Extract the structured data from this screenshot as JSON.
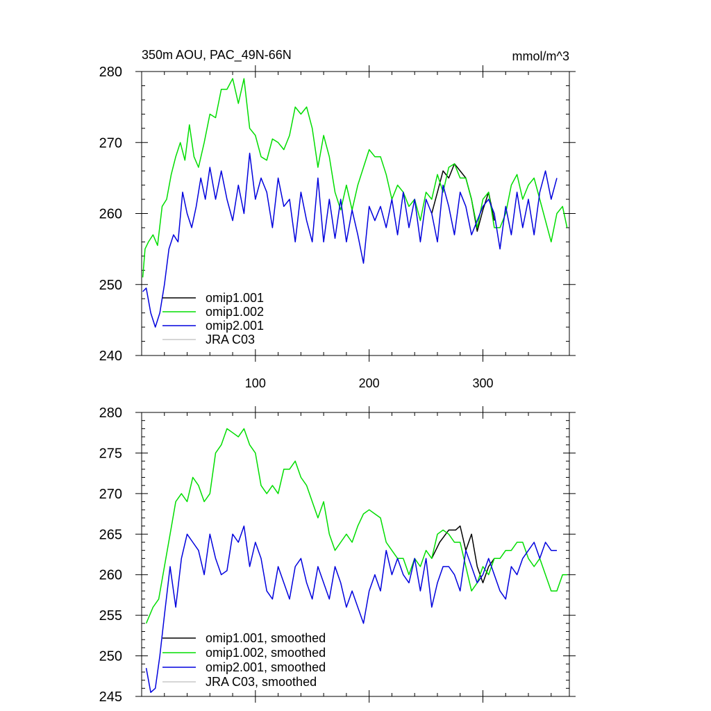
{
  "chart_data": [
    {
      "type": "line",
      "title": "350m AOU, PAC_49N-66N",
      "units_label": "mmol/m^3",
      "xlim": [
        0,
        376
      ],
      "ylim": [
        240,
        280
      ],
      "x_ticks": [
        100,
        200,
        300
      ],
      "y_ticks": [
        240,
        250,
        260,
        270,
        280
      ],
      "legend_placement": "lower-left",
      "legend": [
        "omip1.001",
        "omip1.002",
        "omip2.001",
        "JRA C03"
      ],
      "series": [
        {
          "name": "omip1.001",
          "color": "#000000",
          "x": [
            255,
            260,
            265,
            270,
            275,
            280,
            285,
            290,
            295,
            300,
            305,
            310
          ],
          "y": [
            260,
            263,
            266,
            265,
            267,
            266,
            265,
            262,
            257.5,
            260.5,
            263,
            259
          ]
        },
        {
          "name": "omip1.002",
          "color": "#00dd00",
          "x": [
            1,
            3,
            6,
            10,
            14,
            18,
            22,
            26,
            30,
            34,
            38,
            42,
            46,
            50,
            55,
            60,
            65,
            70,
            75,
            80,
            85,
            90,
            95,
            100,
            105,
            110,
            115,
            120,
            125,
            130,
            135,
            140,
            145,
            150,
            155,
            160,
            165,
            170,
            175,
            180,
            185,
            190,
            195,
            200,
            205,
            210,
            215,
            220,
            225,
            230,
            235,
            240,
            245,
            250,
            255,
            260,
            265,
            270,
            275,
            280,
            285,
            290,
            295,
            300,
            305,
            310,
            315,
            320,
            325,
            330,
            335,
            340,
            345,
            350,
            355,
            360,
            365,
            370,
            374
          ],
          "y": [
            251,
            255,
            256,
            257,
            255.5,
            261,
            262,
            265.5,
            268,
            270,
            267.5,
            272.5,
            268,
            266.5,
            270,
            274,
            273.5,
            277.5,
            277.5,
            279,
            275.5,
            279,
            272,
            271,
            268,
            267.5,
            270.5,
            270,
            269,
            271,
            275,
            274,
            275,
            272,
            266.5,
            271,
            268,
            263,
            260.5,
            264,
            260.5,
            264,
            266.5,
            269,
            268,
            268,
            265.5,
            262,
            264,
            263,
            261,
            262,
            259,
            263,
            262,
            265.5,
            263,
            266.5,
            267,
            265,
            265,
            262,
            258,
            262,
            263,
            258,
            258,
            260,
            264,
            265.5,
            262,
            264,
            265,
            262,
            259,
            256,
            260,
            261,
            258
          ]
        },
        {
          "name": "omip2.001",
          "color": "#0000dd",
          "x": [
            1,
            4,
            8,
            12,
            16,
            20,
            24,
            28,
            32,
            36,
            40,
            44,
            48,
            52,
            56,
            60,
            65,
            70,
            75,
            80,
            85,
            90,
            95,
            100,
            105,
            110,
            115,
            120,
            125,
            130,
            135,
            140,
            145,
            150,
            155,
            160,
            165,
            170,
            175,
            180,
            185,
            190,
            195,
            200,
            205,
            210,
            215,
            220,
            225,
            230,
            235,
            240,
            245,
            250,
            255,
            260,
            265,
            270,
            275,
            280,
            285,
            290,
            295,
            300,
            305,
            310,
            315,
            320,
            325,
            330,
            335,
            340,
            345,
            350,
            355,
            360,
            365
          ],
          "y": [
            249,
            249.5,
            246,
            244,
            246,
            250,
            255,
            257,
            256,
            263,
            260,
            258,
            261,
            265,
            262,
            266.5,
            262,
            266,
            262,
            259,
            264,
            260,
            268.5,
            262,
            265,
            263,
            258,
            265,
            261,
            262,
            256,
            263,
            259,
            256,
            265,
            256,
            262,
            256.5,
            262,
            256,
            260.5,
            257,
            253,
            261,
            259,
            261,
            258,
            262,
            257,
            263,
            258,
            262,
            256,
            262,
            260,
            256,
            264,
            261,
            257,
            263,
            261,
            257,
            259,
            261,
            262,
            260,
            255,
            261,
            257,
            263,
            258,
            262,
            257,
            263,
            266,
            262,
            265
          ]
        },
        {
          "name": "JRA C03",
          "color": "#c8c8c8",
          "x": [],
          "y": []
        }
      ]
    },
    {
      "type": "line",
      "title": "",
      "xlim": [
        0,
        376
      ],
      "ylim": [
        245,
        280
      ],
      "x_ticks": [
        100,
        200,
        300
      ],
      "y_ticks": [
        245,
        250,
        255,
        260,
        265,
        270,
        275,
        280
      ],
      "legend_placement": "lower-left",
      "legend": [
        "omip1.001, smoothed",
        "omip1.002, smoothed",
        "omip2.001, smoothed",
        "JRA C03, smoothed"
      ],
      "series": [
        {
          "name": "omip1.001, smoothed",
          "color": "#000000",
          "x": [
            255,
            262,
            270,
            276,
            280,
            285,
            290,
            295,
            300,
            305,
            310
          ],
          "y": [
            262,
            264,
            265.5,
            265.5,
            266,
            263,
            265,
            261,
            259,
            261,
            262
          ]
        },
        {
          "name": "omip1.002, smoothed",
          "color": "#00dd00",
          "x": [
            4,
            10,
            15,
            20,
            25,
            30,
            35,
            40,
            45,
            50,
            55,
            60,
            65,
            70,
            75,
            80,
            85,
            90,
            95,
            100,
            105,
            110,
            115,
            120,
            125,
            130,
            135,
            140,
            145,
            150,
            155,
            160,
            165,
            170,
            175,
            180,
            185,
            190,
            195,
            200,
            205,
            210,
            215,
            220,
            225,
            230,
            235,
            240,
            245,
            250,
            255,
            260,
            265,
            270,
            275,
            280,
            285,
            290,
            295,
            300,
            305,
            310,
            315,
            320,
            325,
            330,
            335,
            340,
            345,
            350,
            355,
            360,
            365,
            370,
            374
          ],
          "y": [
            254,
            256,
            257,
            261,
            265,
            269,
            270,
            269,
            272,
            271,
            269,
            270,
            275,
            276,
            278,
            277.5,
            277,
            278,
            276,
            275,
            271,
            270,
            271,
            270,
            273,
            273,
            274,
            272,
            271,
            269,
            267,
            269,
            265,
            263,
            264,
            265,
            264,
            266,
            267.5,
            268,
            267.5,
            267,
            264,
            263,
            262,
            262,
            260,
            262,
            261,
            263,
            262,
            265,
            265.5,
            265,
            264,
            264,
            261,
            258,
            259,
            261,
            260,
            262,
            262,
            263,
            263,
            264,
            264,
            262,
            261,
            262,
            260,
            258,
            258,
            260,
            260
          ]
        },
        {
          "name": "omip2.001, smoothed",
          "color": "#0000dd",
          "x": [
            4,
            8,
            12,
            16,
            20,
            25,
            30,
            35,
            40,
            45,
            50,
            55,
            60,
            65,
            70,
            75,
            80,
            85,
            90,
            95,
            100,
            105,
            110,
            115,
            120,
            125,
            130,
            135,
            140,
            145,
            150,
            155,
            160,
            165,
            170,
            175,
            180,
            185,
            190,
            195,
            200,
            205,
            210,
            215,
            220,
            225,
            230,
            235,
            240,
            245,
            250,
            255,
            260,
            265,
            270,
            275,
            280,
            285,
            290,
            295,
            300,
            305,
            310,
            315,
            320,
            325,
            330,
            335,
            340,
            345,
            350,
            355,
            360,
            365
          ],
          "y": [
            248.5,
            245.5,
            246,
            250,
            255,
            261,
            256,
            262,
            265,
            264,
            263,
            260,
            265,
            262,
            260,
            260.5,
            265,
            264,
            266,
            261,
            264,
            262,
            258,
            257,
            261,
            259,
            257,
            261,
            262,
            259,
            257,
            261,
            259,
            257,
            261,
            259,
            256,
            258,
            256,
            254,
            258,
            260,
            258,
            263,
            260,
            262,
            260,
            259,
            262,
            258,
            262,
            256,
            259,
            261,
            261,
            260,
            258,
            263,
            261,
            259,
            260,
            262,
            260,
            258,
            257,
            261,
            260,
            262,
            263,
            264,
            262,
            264,
            263,
            263
          ]
        },
        {
          "name": "JRA C03, smoothed",
          "color": "#c8c8c8",
          "x": [],
          "y": []
        }
      ]
    }
  ]
}
